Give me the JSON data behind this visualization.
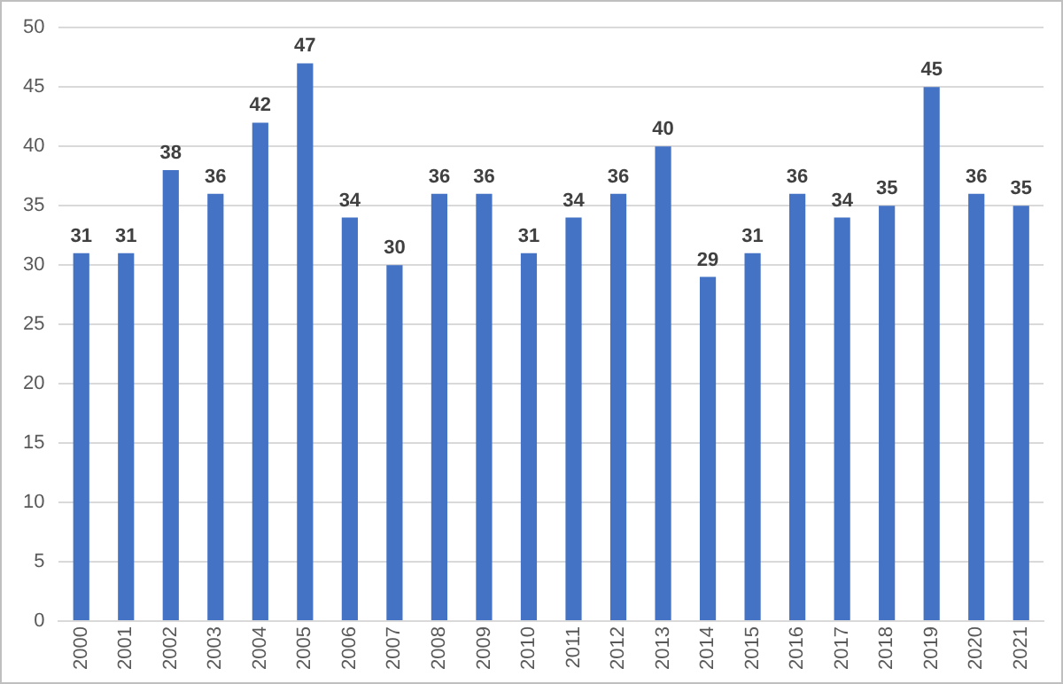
{
  "chart_data": {
    "type": "bar",
    "categories": [
      "2000",
      "2001",
      "2002",
      "2003",
      "2004",
      "2005",
      "2006",
      "2007",
      "2008",
      "2009",
      "2010",
      "2011",
      "2012",
      "2013",
      "2014",
      "2015",
      "2016",
      "2017",
      "2018",
      "2019",
      "2020",
      "2021"
    ],
    "values": [
      31,
      31,
      38,
      36,
      42,
      47,
      34,
      30,
      36,
      36,
      31,
      34,
      36,
      40,
      29,
      31,
      36,
      34,
      35,
      45,
      36,
      35
    ],
    "color": "#4472c4",
    "ylim": [
      0,
      50
    ],
    "yticks": [
      0,
      5,
      10,
      15,
      20,
      25,
      30,
      35,
      40,
      45,
      50
    ],
    "grid": "y",
    "legend": false,
    "data_labels": true
  }
}
